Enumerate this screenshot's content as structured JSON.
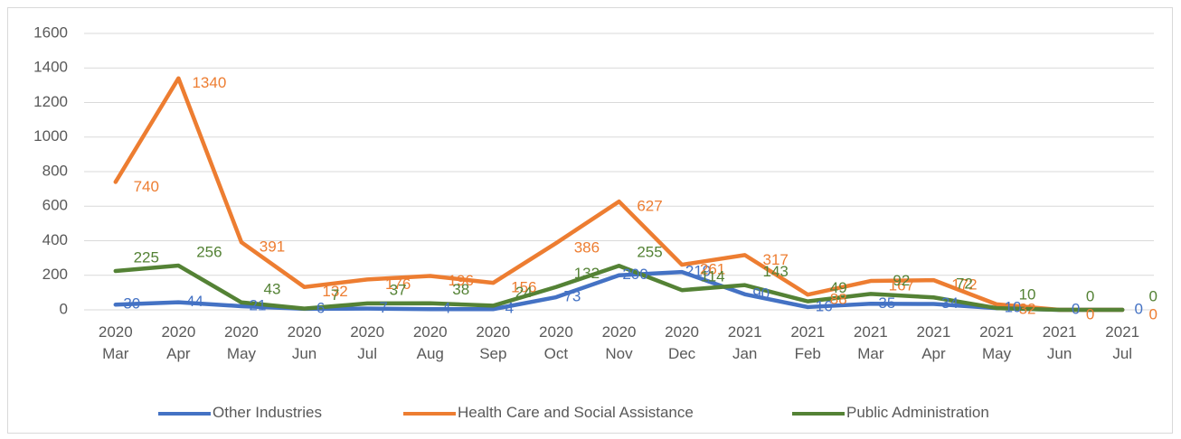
{
  "chart_data": {
    "type": "line",
    "categories": [
      "2020 Mar",
      "2020 Apr",
      "2020 May",
      "2020 Jun",
      "2020 Jul",
      "2020 Aug",
      "2020 Sep",
      "2020 Oct",
      "2020 Nov",
      "2020 Dec",
      "2021 Jan",
      "2021 Feb",
      "2021 Mar",
      "2021 Apr",
      "2021 May",
      "2021 Jun",
      "2021 Jul"
    ],
    "series": [
      {
        "name": "Other Industries",
        "color": "#4472c4",
        "values": [
          30,
          44,
          21,
          6,
          7,
          4,
          4,
          73,
          200,
          219,
          90,
          16,
          35,
          34,
          10,
          0,
          0
        ]
      },
      {
        "name": "Health Care and Social Assistance",
        "color": "#ed7d31",
        "values": [
          740,
          1340,
          391,
          132,
          176,
          196,
          156,
          386,
          627,
          261,
          317,
          88,
          167,
          172,
          32,
          0,
          0
        ]
      },
      {
        "name": "Public Administration",
        "color": "#548235",
        "values": [
          225,
          256,
          43,
          7,
          37,
          38,
          24,
          132,
          255,
          114,
          143,
          49,
          92,
          72,
          10,
          0,
          0
        ]
      }
    ],
    "ylim": [
      0,
      1600
    ],
    "yticks": [
      0,
      200,
      400,
      600,
      800,
      1000,
      1200,
      1400,
      1600
    ],
    "grid": true,
    "legend": "bottom"
  }
}
